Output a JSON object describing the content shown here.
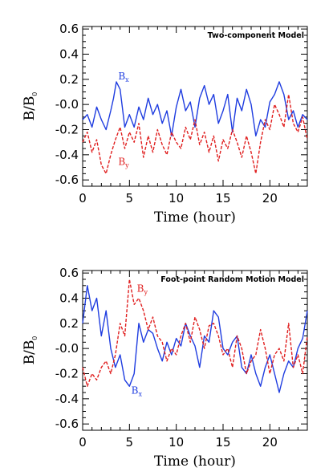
{
  "chart_data": [
    {
      "type": "line",
      "annotation": "Two-component Model",
      "xlabel": "Time (hour)",
      "ylabel": "B/B",
      "ylabel_sub": "0",
      "xlim": [
        0,
        24
      ],
      "ylim": [
        -0.65,
        0.62
      ],
      "xticks": [
        0,
        5,
        10,
        15,
        20
      ],
      "xtick_labels": [
        "0",
        "5",
        "10",
        "15",
        "20"
      ],
      "yticks": [
        0.6,
        0.4,
        0.2,
        0.0,
        -0.2,
        -0.4,
        -0.6
      ],
      "ytick_labels": [
        "0.6",
        "0.4",
        "0.2",
        "-0.0",
        "-0.2",
        "-0.4",
        "-0.6"
      ],
      "grid": false,
      "series": [
        {
          "name": "B",
          "name_sub": "x",
          "color": "#1f3de0",
          "dash": "solid",
          "label_at": [
            3.8,
            0.2
          ],
          "x": [
            0,
            0.5,
            1,
            1.5,
            2,
            2.5,
            3,
            3.3,
            3.6,
            4,
            4.5,
            5,
            5.5,
            6,
            6.5,
            7,
            7.5,
            8,
            8.5,
            9,
            9.5,
            10,
            10.5,
            11,
            11.5,
            12,
            12.5,
            13,
            13.5,
            14,
            14.5,
            15,
            15.5,
            16,
            16.5,
            17,
            17.5,
            18,
            18.5,
            19,
            19.5,
            20,
            20.5,
            21,
            21.5,
            22,
            22.5,
            23,
            23.5,
            24
          ],
          "y": [
            -0.12,
            -0.08,
            -0.18,
            -0.02,
            -0.12,
            -0.2,
            -0.05,
            0.05,
            0.18,
            0.12,
            -0.18,
            -0.08,
            -0.18,
            -0.02,
            -0.12,
            0.05,
            -0.08,
            0.0,
            -0.15,
            -0.05,
            -0.25,
            -0.02,
            0.12,
            -0.05,
            0.02,
            -0.18,
            0.05,
            0.15,
            0.0,
            0.08,
            -0.15,
            -0.05,
            0.08,
            -0.22,
            0.05,
            -0.05,
            0.12,
            0.0,
            -0.25,
            -0.12,
            -0.18,
            0.02,
            0.08,
            0.18,
            0.08,
            -0.12,
            -0.05,
            -0.18,
            -0.08,
            -0.12
          ]
        },
        {
          "name": "B",
          "name_sub": "y",
          "color": "#e01f1f",
          "dash": "dashed",
          "label_at": [
            3.8,
            -0.48
          ],
          "x": [
            0,
            0.5,
            1,
            1.5,
            2,
            2.5,
            3,
            3.5,
            4,
            4.5,
            5,
            5.5,
            6,
            6.5,
            7,
            7.5,
            8,
            8.5,
            9,
            9.5,
            10,
            10.5,
            11,
            11.5,
            12,
            12.5,
            13,
            13.5,
            14,
            14.5,
            15,
            15.5,
            16,
            16.5,
            17,
            17.5,
            18,
            18.5,
            19,
            19.5,
            20,
            20.5,
            21,
            21.5,
            22,
            22.5,
            23,
            23.5,
            24
          ],
          "y": [
            -0.3,
            -0.22,
            -0.38,
            -0.28,
            -0.48,
            -0.55,
            -0.4,
            -0.28,
            -0.18,
            -0.35,
            -0.22,
            -0.3,
            -0.15,
            -0.42,
            -0.25,
            -0.38,
            -0.2,
            -0.32,
            -0.4,
            -0.22,
            -0.3,
            -0.35,
            -0.18,
            -0.28,
            -0.12,
            -0.32,
            -0.22,
            -0.38,
            -0.25,
            -0.45,
            -0.28,
            -0.35,
            -0.2,
            -0.3,
            -0.42,
            -0.25,
            -0.38,
            -0.55,
            -0.3,
            -0.12,
            -0.2,
            0.0,
            -0.08,
            -0.18,
            0.08,
            -0.15,
            -0.22,
            -0.1,
            -0.28
          ]
        }
      ]
    },
    {
      "type": "line",
      "annotation": "Foot-point Random Motion Model",
      "xlabel": "Time (hour)",
      "ylabel": "B/B",
      "ylabel_sub": "0",
      "xlim": [
        0,
        24
      ],
      "ylim": [
        -0.65,
        0.62
      ],
      "xticks": [
        0,
        5,
        10,
        15,
        20
      ],
      "xtick_labels": [
        "0",
        "5",
        "10",
        "15",
        "20"
      ],
      "yticks": [
        0.6,
        0.4,
        0.2,
        0.0,
        -0.2,
        -0.4,
        -0.6
      ],
      "ytick_labels": [
        "0.6",
        "0.4",
        "0.2",
        "-0.0",
        "-0.2",
        "-0.4",
        "-0.6"
      ],
      "grid": false,
      "series": [
        {
          "name": "B",
          "name_sub": "x",
          "color": "#1f3de0",
          "dash": "solid",
          "label_at": [
            5.2,
            -0.36
          ],
          "x": [
            0,
            0.5,
            1,
            1.5,
            2,
            2.5,
            3,
            3.5,
            4,
            4.5,
            5,
            5.5,
            6,
            6.5,
            7,
            7.5,
            8,
            8.5,
            9,
            9.5,
            10,
            10.5,
            11,
            11.5,
            12,
            12.5,
            13,
            13.5,
            14,
            14.5,
            15,
            15.5,
            16,
            16.5,
            17,
            17.5,
            18,
            18.5,
            19,
            19.5,
            20,
            20.5,
            21,
            21.5,
            22,
            22.5,
            23,
            23.5,
            24
          ],
          "y": [
            0.2,
            0.5,
            0.3,
            0.4,
            0.1,
            0.3,
            0.0,
            -0.15,
            -0.05,
            -0.25,
            -0.3,
            -0.2,
            0.2,
            0.05,
            0.15,
            0.12,
            0.0,
            -0.1,
            0.05,
            -0.05,
            0.08,
            0.02,
            0.2,
            0.1,
            0.02,
            -0.15,
            0.1,
            0.05,
            0.3,
            0.25,
            0.0,
            -0.05,
            0.05,
            0.1,
            -0.15,
            -0.2,
            -0.05,
            -0.2,
            -0.3,
            -0.15,
            -0.05,
            -0.2,
            -0.35,
            -0.2,
            -0.1,
            -0.15,
            0.0,
            0.08,
            0.3
          ]
        },
        {
          "name": "B",
          "name_sub": "y",
          "color": "#e01f1f",
          "dash": "dashed",
          "label_at": [
            5.8,
            0.45
          ],
          "x": [
            0,
            0.5,
            1,
            1.5,
            2,
            2.5,
            3,
            3.5,
            4,
            4.5,
            5,
            5.5,
            6,
            6.5,
            7,
            7.5,
            8,
            8.5,
            9,
            9.5,
            10,
            10.5,
            11,
            11.5,
            12,
            12.5,
            13,
            13.5,
            14,
            14.5,
            15,
            15.5,
            16,
            16.5,
            17,
            17.5,
            18,
            18.5,
            19,
            19.5,
            20,
            20.5,
            21,
            21.5,
            22,
            22.5,
            23,
            23.5,
            24
          ],
          "y": [
            -0.15,
            -0.3,
            -0.2,
            -0.25,
            -0.15,
            -0.1,
            -0.2,
            -0.05,
            0.2,
            0.1,
            0.55,
            0.35,
            0.4,
            0.3,
            0.15,
            0.25,
            0.1,
            0.05,
            -0.1,
            0.0,
            -0.05,
            0.1,
            0.2,
            0.05,
            0.25,
            0.15,
            0.0,
            0.18,
            0.2,
            0.1,
            -0.05,
            0.0,
            -0.15,
            0.1,
            0.0,
            -0.2,
            -0.1,
            -0.05,
            0.15,
            0.0,
            -0.2,
            -0.05,
            0.0,
            -0.1,
            0.2,
            -0.15,
            -0.05,
            -0.2,
            0.1
          ]
        }
      ]
    }
  ]
}
